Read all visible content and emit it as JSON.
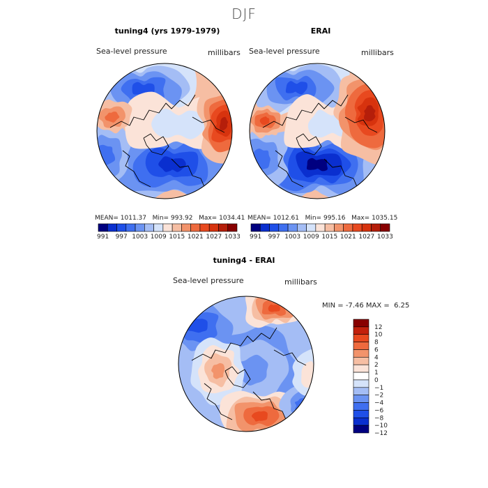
{
  "figure": {
    "title": "DJF"
  },
  "chart_data": [
    {
      "type": "heatmap",
      "title": "tuning4 (yrs 1979-1979)",
      "left_label": "Sea-level pressure",
      "right_label": "millibars",
      "projection": "polar stereographic (north pole)",
      "stats": {
        "mean_label": "MEAN=",
        "mean": "1011.37",
        "min_label": "Min=",
        "min": "993.92",
        "max_label": "Max=",
        "max": "1034.41"
      },
      "colorbar": {
        "levels": [
          991,
          994,
          997,
          1000,
          1003,
          1006,
          1009,
          1012,
          1015,
          1018,
          1021,
          1024,
          1027,
          1030,
          1033
        ],
        "tick_labels": [
          "991",
          "997",
          "1003",
          "1009",
          "1015",
          "1021",
          "1027",
          "1033"
        ],
        "colors": [
          "#000080",
          "#0a2fcf",
          "#1f4fe8",
          "#3f6ff0",
          "#6b93f2",
          "#a4bdf5",
          "#d5e3fa",
          "#fbe3d8",
          "#f6bea3",
          "#f2936b",
          "#ee6a3e",
          "#e8491f",
          "#d7330e",
          "#b51e0a",
          "#880000"
        ]
      }
    },
    {
      "type": "heatmap",
      "title": "ERAI",
      "left_label": "Sea-level pressure",
      "right_label": "millibars",
      "projection": "polar stereographic (north pole)",
      "stats": {
        "mean_label": "MEAN=",
        "mean": "1012.61",
        "min_label": "Min=",
        "min": "995.16",
        "max_label": "Max=",
        "max": "1035.15"
      },
      "colorbar": {
        "levels": [
          991,
          994,
          997,
          1000,
          1003,
          1006,
          1009,
          1012,
          1015,
          1018,
          1021,
          1024,
          1027,
          1030,
          1033
        ],
        "tick_labels": [
          "991",
          "997",
          "1003",
          "1009",
          "1015",
          "1021",
          "1027",
          "1033"
        ],
        "colors": [
          "#000080",
          "#0a2fcf",
          "#1f4fe8",
          "#3f6ff0",
          "#6b93f2",
          "#a4bdf5",
          "#d5e3fa",
          "#fbe3d8",
          "#f6bea3",
          "#f2936b",
          "#ee6a3e",
          "#e8491f",
          "#d7330e",
          "#b51e0a",
          "#880000"
        ]
      }
    },
    {
      "type": "heatmap",
      "title": "tuning4 - ERAI",
      "left_label": "Sea-level pressure",
      "right_label": "millibars",
      "projection": "polar stereographic (north pole)",
      "stats": {
        "min_label": "MIN =",
        "min": "-7.46",
        "max_label": "MAX =",
        "max": "6.25"
      },
      "colorbar": {
        "orientation": "vertical",
        "tick_labels": [
          "12",
          "10",
          "8",
          "6",
          "4",
          "2",
          "1",
          "0",
          "−1",
          "−2",
          "−4",
          "−6",
          "−8",
          "−10",
          "−12"
        ],
        "colors": [
          "#880000",
          "#c2200c",
          "#e8491f",
          "#ee6a3e",
          "#f2936b",
          "#f6bea3",
          "#fbe3d8",
          "#ffffff",
          "#d5e3fa",
          "#a4bdf5",
          "#6b93f2",
          "#3f6ff0",
          "#1f4fe8",
          "#0a2fcf",
          "#000080"
        ]
      }
    }
  ]
}
